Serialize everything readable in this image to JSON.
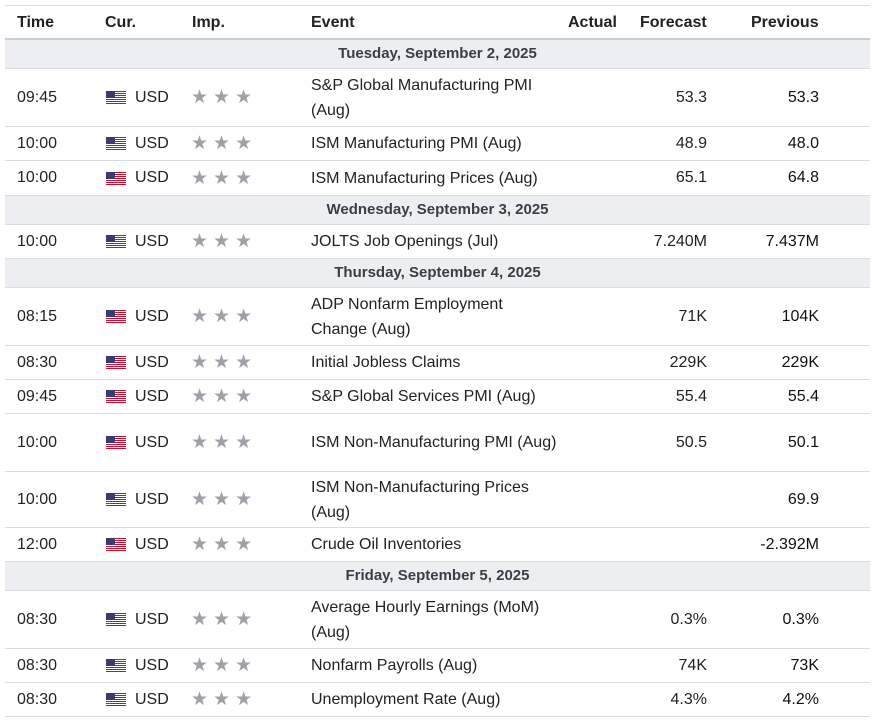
{
  "header": {
    "time": "Time",
    "currency": "Cur.",
    "importance": "Imp.",
    "event": "Event",
    "actual": "Actual",
    "forecast": "Forecast",
    "previous": "Previous"
  },
  "groups": [
    {
      "day": "Tuesday, September 2, 2025",
      "events": [
        {
          "time": "09:45",
          "currency": "USD",
          "event": "S&P Global Manufacturing PMI (Aug)",
          "actual": "",
          "forecast": "53.3",
          "previous": "53.3",
          "stars": 3
        },
        {
          "time": "10:00",
          "currency": "USD",
          "event": "ISM Manufacturing PMI (Aug)",
          "actual": "",
          "forecast": "48.9",
          "previous": "48.0",
          "stars": 3
        },
        {
          "time": "10:00",
          "currency": "USD",
          "event": "ISM Manufacturing Prices (Aug)",
          "actual": "",
          "forecast": "65.1",
          "previous": "64.8",
          "stars": 3
        }
      ]
    },
    {
      "day": "Wednesday, September 3, 2025",
      "events": [
        {
          "time": "10:00",
          "currency": "USD",
          "event": "JOLTS Job Openings (Jul)",
          "actual": "",
          "forecast": "7.240M",
          "previous": "7.437M",
          "stars": 3
        }
      ]
    },
    {
      "day": "Thursday, September 4, 2025",
      "events": [
        {
          "time": "08:15",
          "currency": "USD",
          "event": "ADP Nonfarm Employment Change (Aug)",
          "actual": "",
          "forecast": "71K",
          "previous": "104K",
          "stars": 3
        },
        {
          "time": "08:30",
          "currency": "USD",
          "event": "Initial Jobless Claims",
          "actual": "",
          "forecast": "229K",
          "previous": "229K",
          "stars": 3
        },
        {
          "time": "09:45",
          "currency": "USD",
          "event": "S&P Global Services PMI (Aug)",
          "actual": "",
          "forecast": "55.4",
          "previous": "55.4",
          "stars": 3
        },
        {
          "time": "10:00",
          "currency": "USD",
          "event": "ISM Non-Manufacturing PMI (Aug)",
          "actual": "",
          "forecast": "50.5",
          "previous": "50.1",
          "stars": 3
        },
        {
          "time": "10:00",
          "currency": "USD",
          "event": "ISM Non-Manufacturing Prices (Aug)",
          "actual": "",
          "forecast": "",
          "previous": "69.9",
          "stars": 3
        },
        {
          "time": "12:00",
          "currency": "USD",
          "event": "Crude Oil Inventories",
          "actual": "",
          "forecast": "",
          "previous": "-2.392M",
          "stars": 3
        }
      ]
    },
    {
      "day": "Friday, September 5, 2025",
      "events": [
        {
          "time": "08:30",
          "currency": "USD",
          "event": "Average Hourly Earnings (MoM) (Aug)",
          "actual": "",
          "forecast": "0.3%",
          "previous": "0.3%",
          "stars": 3
        },
        {
          "time": "08:30",
          "currency": "USD",
          "event": "Nonfarm Payrolls (Aug)",
          "actual": "",
          "forecast": "74K",
          "previous": "73K",
          "stars": 3
        },
        {
          "time": "08:30",
          "currency": "USD",
          "event": "Unemployment Rate (Aug)",
          "actual": "",
          "forecast": "4.3%",
          "previous": "4.2%",
          "stars": 3
        }
      ]
    }
  ],
  "icons": {
    "flag": "us-flag-icon",
    "star": "star-icon"
  },
  "colors": {
    "day_bg": "#eceef1",
    "star": "#9ea2a8",
    "border": "#d9dde1"
  }
}
